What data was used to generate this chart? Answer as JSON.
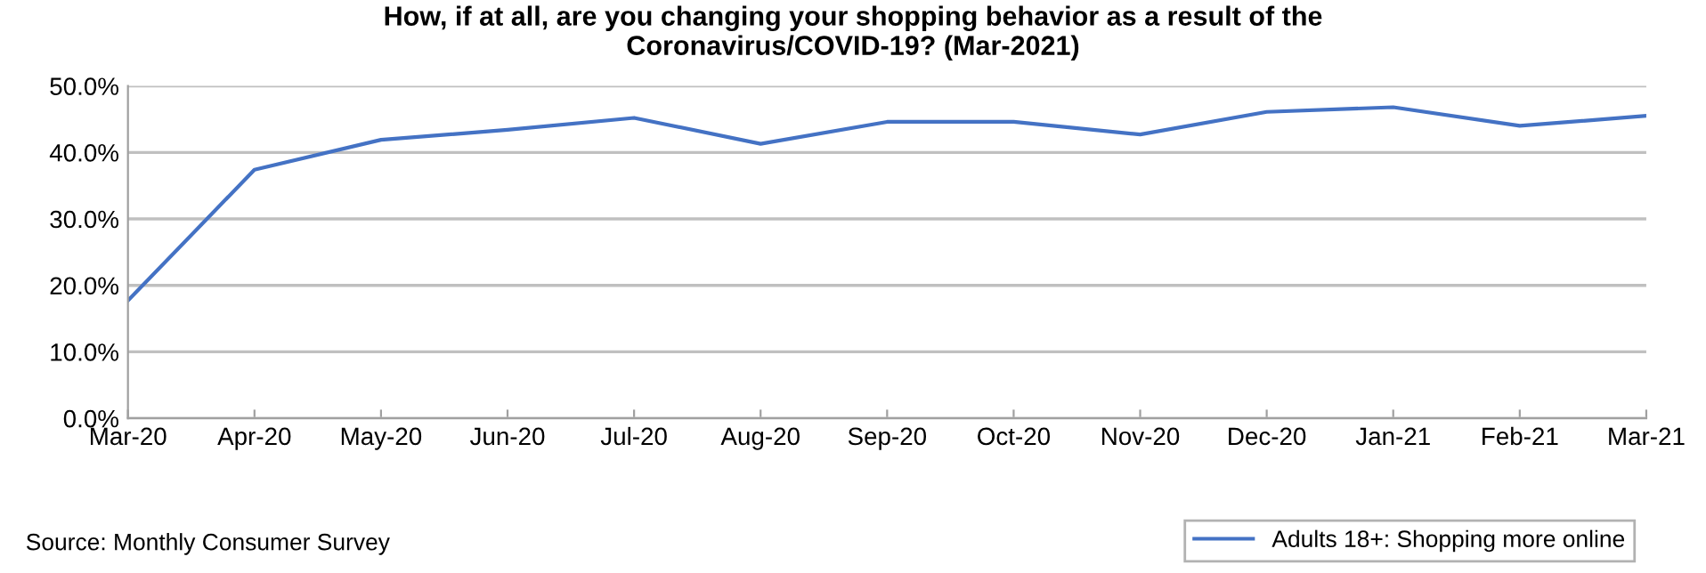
{
  "chart_data": {
    "type": "line",
    "title": "How, if at all, are you changing your shopping behavior as a result of the\nCoronavirus/COVID-19? (Mar-2021)",
    "categories": [
      "Mar-20",
      "Apr-20",
      "May-20",
      "Jun-20",
      "Jul-20",
      "Aug-20",
      "Sep-20",
      "Oct-20",
      "Nov-20",
      "Dec-20",
      "Jan-21",
      "Feb-21",
      "Mar-21"
    ],
    "series": [
      {
        "name": "Adults 18+: Shopping more online",
        "color": "#4472c4",
        "values": [
          17.7,
          37.4,
          41.9,
          43.4,
          45.2,
          41.3,
          44.6,
          44.6,
          42.7,
          46.1,
          46.8,
          44.0,
          45.5
        ]
      }
    ],
    "ylim": [
      0,
      50
    ],
    "yticks": [
      {
        "value": 0,
        "label": "0.0%"
      },
      {
        "value": 10,
        "label": "10.0%"
      },
      {
        "value": 20,
        "label": "20.0%"
      },
      {
        "value": 30,
        "label": "30.0%"
      },
      {
        "value": 40,
        "label": "40.0%"
      },
      {
        "value": 50,
        "label": "50.0%"
      }
    ],
    "grid": "y",
    "legend": "bottom right",
    "marker": "none",
    "line_style": "solid",
    "annotations": [
      "Source: Monthly Consumer Survey"
    ]
  }
}
